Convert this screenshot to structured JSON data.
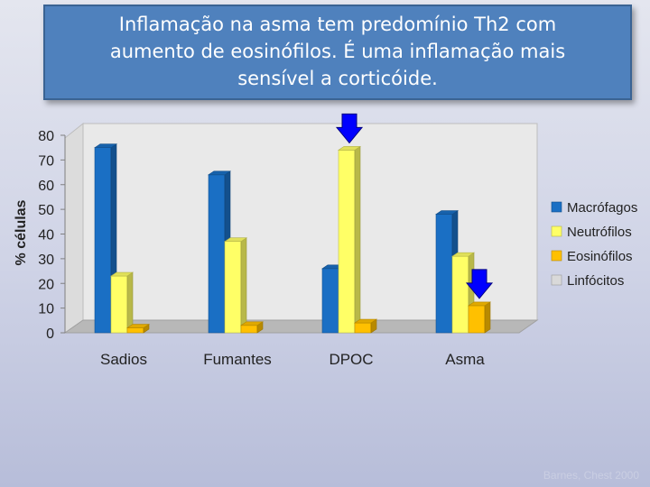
{
  "title": {
    "lines": [
      "Inflamação na asma tem predomínio Th2 com",
      "aumento de eosinófilos. É uma inflamação mais",
      "sensível a corticóide."
    ]
  },
  "watermark": "Barnes, Chest 2000",
  "colors": {
    "macrofagos": "#1a6fc4",
    "neutrofilos": "#ffff66",
    "eosinofilos": "#ffc000",
    "linfocitos": "#d9d9d9",
    "arrow": "#0000ff"
  },
  "chart_data": {
    "type": "bar",
    "categories": [
      "Sadios",
      "Fumantes",
      "DPOC",
      "Asma"
    ],
    "series": [
      {
        "name": "Macrófagos",
        "values": [
          75,
          64,
          26,
          48
        ]
      },
      {
        "name": "Neutrófilos",
        "values": [
          23,
          37,
          74,
          31
        ]
      },
      {
        "name": "Eosinófilos",
        "values": [
          2,
          3,
          4,
          11
        ]
      },
      {
        "name": "Linfócitos",
        "values": [
          0,
          0,
          0,
          0
        ]
      }
    ],
    "ylabel": "% células",
    "xlabel": "",
    "ylim": [
      0,
      80
    ],
    "yticks": [
      0,
      10,
      20,
      30,
      40,
      50,
      60,
      70,
      80
    ],
    "grid": false,
    "legend": "right",
    "annotations": [
      {
        "type": "arrow-down",
        "category": "DPOC",
        "series": "Neutrófilos"
      },
      {
        "type": "arrow-down",
        "category": "Asma",
        "series": "Eosinófilos"
      }
    ]
  }
}
